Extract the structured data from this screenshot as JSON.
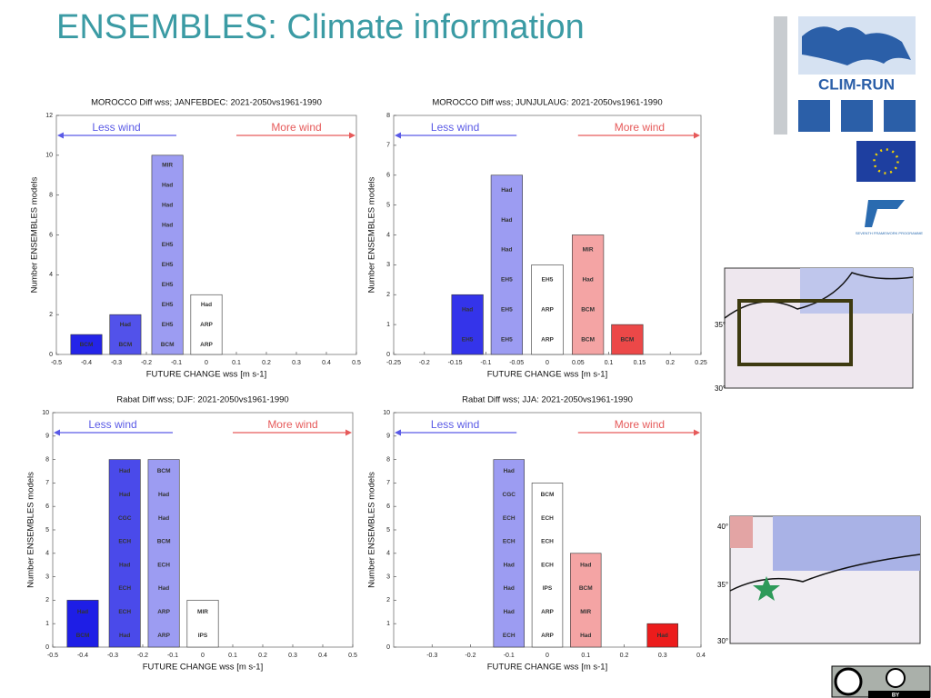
{
  "title": "ENSEMBLES: Climate information",
  "logos": {
    "project": "CLIM-RUN",
    "programme": "SEVENTH FRAMEWORK PROGRAMME",
    "license": "BY"
  },
  "maps": [
    {
      "lat_labels": [
        "35°",
        "30°"
      ]
    },
    {
      "lat_labels": [
        "40°",
        "35°",
        "30°"
      ]
    }
  ],
  "chart_data": [
    {
      "type": "bar",
      "title": "MOROCCO Diff wss; JANFEBDEC: 2021-2050vs1961-1990",
      "xlabel": "FUTURE CHANGE wss [m s-1]",
      "ylabel": "Number ENSEMBLES models",
      "annotations": [
        "Less wind",
        "More wind"
      ],
      "xlim": [
        -0.5,
        0.5
      ],
      "xticks": [
        -0.5,
        -0.4,
        -0.3,
        -0.2,
        -0.1,
        0,
        0.1,
        0.2,
        0.3,
        0.4,
        0.5
      ],
      "ylim": [
        0,
        12
      ],
      "yticks": [
        0,
        2,
        4,
        6,
        8,
        10,
        12
      ],
      "x": [
        -0.4,
        -0.27,
        -0.13,
        0
      ],
      "values": [
        1,
        2,
        10,
        3
      ],
      "colors": [
        "#2424e8",
        "#5252ea",
        "#9c9cf2",
        "#ffffff"
      ],
      "models": [
        [
          "BCM"
        ],
        [
          "BCM",
          "Had"
        ],
        [
          "BCM",
          "EH5",
          "EH5",
          "EH5",
          "EH5",
          "EH5",
          "Had",
          "Had",
          "Had",
          "MIR"
        ],
        [
          "ARP",
          "ARP",
          "Had"
        ]
      ]
    },
    {
      "type": "bar",
      "title": "MOROCCO Diff wss; JUNJULAUG: 2021-2050vs1961-1990",
      "xlabel": "FUTURE CHANGE wss [m s-1]",
      "ylabel": "Number ENSEMBLES models",
      "annotations": [
        "Less wind",
        "More wind"
      ],
      "xlim": [
        -0.25,
        0.25
      ],
      "xticks": [
        -0.25,
        -0.2,
        -0.15,
        -0.1,
        -0.05,
        0,
        0.05,
        0.1,
        0.15,
        0.2,
        0.25
      ],
      "ylim": [
        0,
        8
      ],
      "yticks": [
        0,
        1,
        2,
        3,
        4,
        5,
        6,
        7,
        8
      ],
      "x": [
        -0.13,
        -0.066,
        0,
        0.066,
        0.13
      ],
      "values": [
        2,
        6,
        3,
        4,
        1
      ],
      "colors": [
        "#3434ea",
        "#9c9cf2",
        "#ffffff",
        "#f4a4a4",
        "#ec4848"
      ],
      "models": [
        [
          "EH5",
          "Had"
        ],
        [
          "EH5",
          "EH5",
          "EH5",
          "Had",
          "Had",
          "Had"
        ],
        [
          "ARP",
          "ARP",
          "EH5"
        ],
        [
          "BCM",
          "BCM",
          "Had",
          "MIR"
        ],
        [
          "BCM"
        ]
      ]
    },
    {
      "type": "bar",
      "title": "Rabat Diff wss; DJF: 2021-2050vs1961-1990",
      "xlabel": "FUTURE CHANGE wss [m s-1]",
      "ylabel": "Number ENSEMBLES models",
      "annotations": [
        "Less wind",
        "More wind"
      ],
      "xlim": [
        -0.5,
        0.5
      ],
      "xticks": [
        -0.5,
        -0.4,
        -0.3,
        -0.2,
        -0.1,
        0,
        0.1,
        0.2,
        0.3,
        0.4,
        0.5
      ],
      "ylim": [
        0,
        10
      ],
      "yticks": [
        0,
        1,
        2,
        3,
        4,
        5,
        6,
        7,
        8,
        9,
        10
      ],
      "x": [
        -0.4,
        -0.26,
        -0.13,
        0
      ],
      "values": [
        2,
        8,
        8,
        2
      ],
      "colors": [
        "#1e1ee6",
        "#4a4aea",
        "#9c9cf2",
        "#ffffff"
      ],
      "models": [
        [
          "BCM",
          "Had"
        ],
        [
          "Had",
          "ECH",
          "ECH",
          "Had",
          "ECH",
          "CGC",
          "Had",
          "Had"
        ],
        [
          "ARP",
          "ARP",
          "Had",
          "ECH",
          "BCM",
          "Had",
          "Had",
          "BCM"
        ],
        [
          "IPS",
          "MIR"
        ]
      ]
    },
    {
      "type": "bar",
      "title": "Rabat Diff wss; JJA: 2021-2050vs1961-1990",
      "xlabel": "FUTURE CHANGE wss [m s-1]",
      "ylabel": "Number ENSEMBLES models",
      "annotations": [
        "Less wind",
        "More wind"
      ],
      "xlim": [
        -0.4,
        0.4
      ],
      "xticks": [
        -0.3,
        -0.2,
        -0.1,
        0,
        0.1,
        0.2,
        0.3,
        0.4
      ],
      "ylim": [
        0,
        10
      ],
      "yticks": [
        0,
        1,
        2,
        3,
        4,
        5,
        6,
        7,
        8,
        9,
        10
      ],
      "x": [
        -0.1,
        0,
        0.1,
        0.3
      ],
      "values": [
        8,
        7,
        4,
        1
      ],
      "colors": [
        "#9c9cf2",
        "#ffffff",
        "#f4a4a4",
        "#ec1c1c"
      ],
      "models": [
        [
          "ECH",
          "Had",
          "Had",
          "Had",
          "ECH",
          "ECH",
          "CGC",
          "Had"
        ],
        [
          "ARP",
          "ARP",
          "IPS",
          "ECH",
          "ECH",
          "ECH",
          "BCM"
        ],
        [
          "Had",
          "MIR",
          "BCM",
          "Had"
        ],
        [
          "Had"
        ]
      ]
    }
  ]
}
